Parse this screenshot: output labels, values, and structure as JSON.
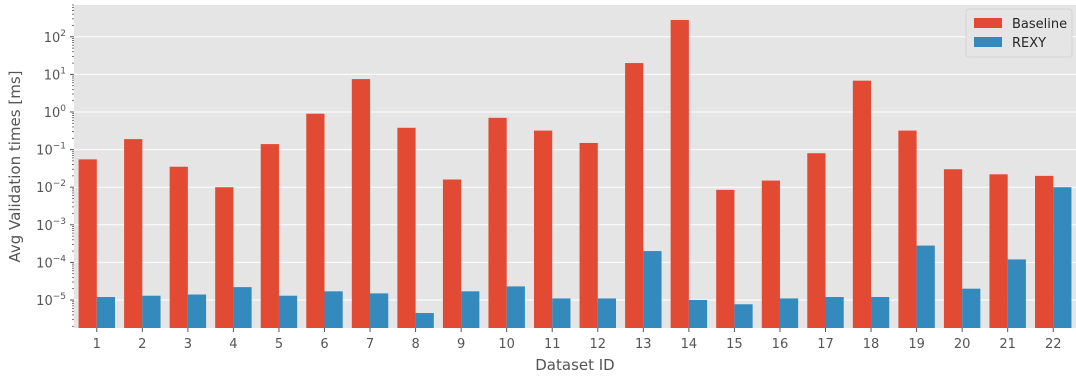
{
  "chart_data": {
    "type": "bar",
    "xlabel": "Dataset ID",
    "ylabel": "Avg Validation times [ms]",
    "yscale": "log",
    "ylim": [
      1.8e-06,
      700
    ],
    "yticks": [
      {
        "value": 1e-05,
        "mant": "10",
        "exp": "−5"
      },
      {
        "value": 0.0001,
        "mant": "10",
        "exp": "−4"
      },
      {
        "value": 0.001,
        "mant": "10",
        "exp": "−3"
      },
      {
        "value": 0.01,
        "mant": "10",
        "exp": "−2"
      },
      {
        "value": 0.1,
        "mant": "10",
        "exp": "−1"
      },
      {
        "value": 1,
        "mant": "10",
        "exp": "0"
      },
      {
        "value": 10,
        "mant": "10",
        "exp": "1"
      },
      {
        "value": 100,
        "mant": "10",
        "exp": "2"
      }
    ],
    "grid": true,
    "legend_position": "top-right",
    "categories": [
      "1",
      "2",
      "3",
      "4",
      "5",
      "6",
      "7",
      "8",
      "9",
      "10",
      "11",
      "12",
      "13",
      "14",
      "15",
      "16",
      "17",
      "18",
      "19",
      "20",
      "21",
      "22"
    ],
    "series": [
      {
        "name": "Baseline",
        "color": "#E24A33",
        "values": [
          0.055,
          0.19,
          0.035,
          0.01,
          0.14,
          0.9,
          7.5,
          0.38,
          0.016,
          0.7,
          0.32,
          0.15,
          20,
          280,
          0.0085,
          0.015,
          0.08,
          6.8,
          0.32,
          0.03,
          0.022,
          0.02
        ]
      },
      {
        "name": "REXY",
        "color": "#348ABD",
        "values": [
          1.2e-05,
          1.3e-05,
          1.4e-05,
          2.2e-05,
          1.3e-05,
          1.7e-05,
          1.5e-05,
          4.5e-06,
          1.7e-05,
          2.3e-05,
          1.1e-05,
          1.1e-05,
          0.0002,
          1e-05,
          7.7e-06,
          1.1e-05,
          1.2e-05,
          1.2e-05,
          0.00028,
          2e-05,
          0.00012,
          0.01
        ]
      }
    ]
  }
}
